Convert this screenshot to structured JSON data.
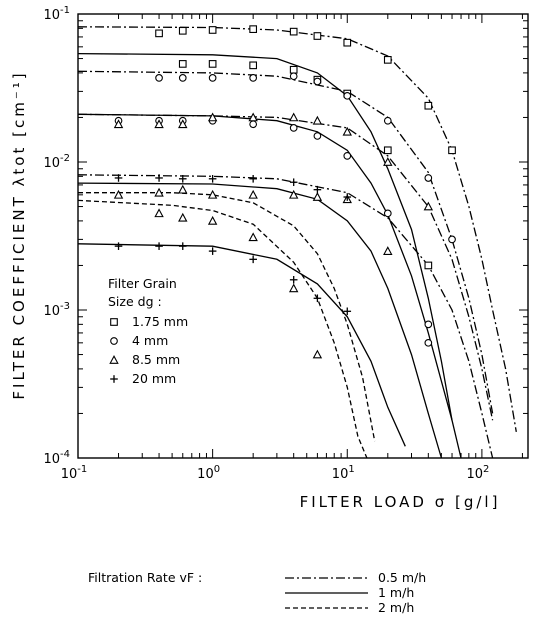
{
  "chart_data": {
    "type": "scatter",
    "xlabel": "FILTER  LOAD  σ   [g/l]",
    "ylabel": "FILTER  COEFFICIENT   λtot  [cm⁻¹]",
    "x_scale": "log",
    "y_scale": "log",
    "xlim": [
      0.1,
      220
    ],
    "ylim": [
      0.0001,
      0.1
    ],
    "x_tick_values": [
      0.1,
      1,
      10,
      100
    ],
    "x_tick_labels": [
      {
        "base": "10",
        "exp": "-1"
      },
      {
        "base": "10",
        "exp": "0"
      },
      {
        "base": "10",
        "exp": "1"
      },
      {
        "base": "10",
        "exp": "2"
      }
    ],
    "y_tick_values": [
      0.0001,
      0.001,
      0.01,
      0.1
    ],
    "y_tick_labels": [
      {
        "base": "10",
        "exp": "-4"
      },
      {
        "base": "10",
        "exp": "-3"
      },
      {
        "base": "10",
        "exp": "-2"
      },
      {
        "base": "10",
        "exp": "-1"
      }
    ],
    "grid": false,
    "grain_legend": {
      "title_line1": "Filter Grain",
      "title_line2": "Size  dg :",
      "items": [
        {
          "marker": "square",
          "label": "1.75 mm"
        },
        {
          "marker": "circle",
          "label": "4    mm"
        },
        {
          "marker": "triangle",
          "label": "8.5  mm"
        },
        {
          "marker": "plus",
          "label": "20   mm"
        }
      ]
    },
    "rate_legend": {
      "title": "Filtration Rate  vF :",
      "items": [
        {
          "style": "dashdot",
          "label": "0.5  m/h"
        },
        {
          "style": "solid",
          "label": "1    m/h"
        },
        {
          "style": "dashed",
          "label": "2    m/h"
        }
      ]
    },
    "series": [
      {
        "marker": "square",
        "points": [
          [
            0.4,
            0.074
          ],
          [
            0.6,
            0.077
          ],
          [
            1.0,
            0.078
          ],
          [
            2.0,
            0.079
          ],
          [
            4.0,
            0.076
          ],
          [
            6.0,
            0.071
          ],
          [
            10.0,
            0.064
          ],
          [
            20.0,
            0.049
          ],
          [
            40.0,
            0.024
          ],
          [
            60.0,
            0.012
          ]
        ]
      },
      {
        "marker": "square",
        "points": [
          [
            0.6,
            0.046
          ],
          [
            1.0,
            0.046
          ],
          [
            2.0,
            0.045
          ],
          [
            4.0,
            0.042
          ],
          [
            6.0,
            0.036
          ],
          [
            10.0,
            0.029
          ],
          [
            20.0,
            0.012
          ],
          [
            40.0,
            0.002
          ]
        ]
      },
      {
        "marker": "circle",
        "points": [
          [
            0.4,
            0.037
          ],
          [
            0.6,
            0.037
          ],
          [
            1.0,
            0.037
          ],
          [
            2.0,
            0.037
          ],
          [
            4.0,
            0.038
          ],
          [
            6.0,
            0.035
          ],
          [
            10.0,
            0.028
          ],
          [
            20.0,
            0.019
          ],
          [
            40.0,
            0.0078
          ],
          [
            60.0,
            0.003
          ]
        ]
      },
      {
        "marker": "circle",
        "points": [
          [
            0.2,
            0.019
          ],
          [
            0.4,
            0.019
          ],
          [
            0.6,
            0.019
          ],
          [
            1.0,
            0.019
          ],
          [
            2.0,
            0.018
          ],
          [
            4.0,
            0.017
          ],
          [
            6.0,
            0.015
          ],
          [
            10.0,
            0.011
          ],
          [
            20.0,
            0.0045
          ],
          [
            40.0,
            0.0008
          ],
          [
            40.0,
            0.0006
          ]
        ]
      },
      {
        "marker": "triangle",
        "points": [
          [
            0.2,
            0.018
          ],
          [
            0.4,
            0.018
          ],
          [
            0.6,
            0.018
          ],
          [
            1.0,
            0.02
          ],
          [
            2.0,
            0.02
          ],
          [
            4.0,
            0.02
          ],
          [
            6.0,
            0.019
          ],
          [
            10.0,
            0.016
          ],
          [
            20.0,
            0.01
          ],
          [
            40.0,
            0.005
          ]
        ]
      },
      {
        "marker": "triangle",
        "points": [
          [
            0.2,
            0.006
          ],
          [
            0.4,
            0.0062
          ],
          [
            0.6,
            0.0065
          ],
          [
            1.0,
            0.006
          ],
          [
            2.0,
            0.006
          ],
          [
            4.0,
            0.006
          ],
          [
            6.0,
            0.0058
          ],
          [
            10.0,
            0.0056
          ],
          [
            20.0,
            0.0025
          ]
        ]
      },
      {
        "marker": "triangle",
        "points": [
          [
            0.4,
            0.0045
          ],
          [
            0.6,
            0.0042
          ],
          [
            1.0,
            0.004
          ],
          [
            2.0,
            0.0031
          ],
          [
            4.0,
            0.0014
          ],
          [
            6.0,
            0.0005
          ]
        ]
      },
      {
        "marker": "plus",
        "points": [
          [
            0.2,
            0.0078
          ],
          [
            0.4,
            0.0078
          ],
          [
            0.6,
            0.0077
          ],
          [
            1.0,
            0.0077
          ],
          [
            2.0,
            0.0077
          ],
          [
            4.0,
            0.0073
          ],
          [
            6.0,
            0.0065
          ],
          [
            10.0,
            0.0058
          ]
        ]
      },
      {
        "marker": "plus",
        "points": [
          [
            0.2,
            0.0027
          ],
          [
            0.4,
            0.0027
          ],
          [
            0.6,
            0.0027
          ],
          [
            1.0,
            0.0025
          ],
          [
            2.0,
            0.0022
          ],
          [
            4.0,
            0.0016
          ],
          [
            6.0,
            0.0012
          ],
          [
            10.0,
            0.00098
          ]
        ]
      }
    ],
    "curves": [
      {
        "style": "dashdot",
        "points": [
          [
            0.1,
            0.082
          ],
          [
            1,
            0.081
          ],
          [
            3,
            0.078
          ],
          [
            10,
            0.068
          ],
          [
            20,
            0.052
          ],
          [
            40,
            0.027
          ],
          [
            60,
            0.012
          ],
          [
            80,
            0.005
          ],
          [
            100,
            0.0022
          ],
          [
            120,
            0.001
          ],
          [
            150,
            0.0004
          ],
          [
            180,
            0.00015
          ]
        ]
      },
      {
        "style": "dashdot",
        "points": [
          [
            0.1,
            0.041
          ],
          [
            1,
            0.04
          ],
          [
            3,
            0.038
          ],
          [
            10,
            0.03
          ],
          [
            20,
            0.02
          ],
          [
            40,
            0.0085
          ],
          [
            60,
            0.003
          ],
          [
            80,
            0.0012
          ],
          [
            100,
            0.0005
          ],
          [
            120,
            0.0002
          ]
        ]
      },
      {
        "style": "dashdot",
        "points": [
          [
            0.1,
            0.021
          ],
          [
            1,
            0.0205
          ],
          [
            3,
            0.02
          ],
          [
            10,
            0.017
          ],
          [
            20,
            0.011
          ],
          [
            40,
            0.005
          ],
          [
            60,
            0.0022
          ],
          [
            80,
            0.0009
          ],
          [
            100,
            0.0004
          ],
          [
            120,
            0.00018
          ]
        ]
      },
      {
        "style": "dashdot",
        "points": [
          [
            0.1,
            0.0082
          ],
          [
            1,
            0.008
          ],
          [
            3,
            0.0077
          ],
          [
            10,
            0.0062
          ],
          [
            20,
            0.0042
          ],
          [
            40,
            0.002
          ],
          [
            60,
            0.001
          ],
          [
            80,
            0.00045
          ],
          [
            100,
            0.0002
          ],
          [
            120,
            0.0001
          ]
        ]
      },
      {
        "style": "solid",
        "points": [
          [
            0.1,
            0.054
          ],
          [
            1,
            0.053
          ],
          [
            3,
            0.05
          ],
          [
            6,
            0.04
          ],
          [
            10,
            0.028
          ],
          [
            15,
            0.016
          ],
          [
            20,
            0.009
          ],
          [
            30,
            0.0035
          ],
          [
            40,
            0.0012
          ],
          [
            50,
            0.00045
          ],
          [
            60,
            0.00018
          ]
        ]
      },
      {
        "style": "solid",
        "points": [
          [
            0.1,
            0.021
          ],
          [
            1,
            0.0205
          ],
          [
            3,
            0.019
          ],
          [
            6,
            0.016
          ],
          [
            10,
            0.012
          ],
          [
            15,
            0.0072
          ],
          [
            20,
            0.0044
          ],
          [
            30,
            0.0017
          ],
          [
            40,
            0.0007
          ],
          [
            60,
            0.00018
          ],
          [
            70,
            0.0001
          ]
        ]
      },
      {
        "style": "solid",
        "points": [
          [
            0.1,
            0.0072
          ],
          [
            1,
            0.0071
          ],
          [
            3,
            0.0066
          ],
          [
            6,
            0.0056
          ],
          [
            10,
            0.004
          ],
          [
            15,
            0.0025
          ],
          [
            20,
            0.0014
          ],
          [
            30,
            0.0005
          ],
          [
            40,
            0.0002
          ],
          [
            50,
            0.0001
          ]
        ]
      },
      {
        "style": "solid",
        "points": [
          [
            0.1,
            0.0028
          ],
          [
            1,
            0.0027
          ],
          [
            3,
            0.0022
          ],
          [
            6,
            0.0015
          ],
          [
            10,
            0.0009
          ],
          [
            15,
            0.00045
          ],
          [
            20,
            0.00022
          ],
          [
            27,
            0.00012
          ]
        ]
      },
      {
        "style": "dashed",
        "points": [
          [
            0.1,
            0.0055
          ],
          [
            0.5,
            0.0051
          ],
          [
            1,
            0.0047
          ],
          [
            2,
            0.0038
          ],
          [
            4,
            0.0021
          ],
          [
            6,
            0.0012
          ],
          [
            8,
            0.0006
          ],
          [
            10,
            0.0003
          ],
          [
            12,
            0.00014
          ],
          [
            14,
            0.0001
          ]
        ]
      },
      {
        "style": "dashed",
        "points": [
          [
            0.1,
            0.0062
          ],
          [
            0.5,
            0.0062
          ],
          [
            1,
            0.006
          ],
          [
            2,
            0.0053
          ],
          [
            4,
            0.0037
          ],
          [
            6,
            0.0024
          ],
          [
            8,
            0.0014
          ],
          [
            10,
            0.0008
          ],
          [
            13,
            0.00035
          ],
          [
            16,
            0.00013
          ]
        ]
      }
    ]
  }
}
